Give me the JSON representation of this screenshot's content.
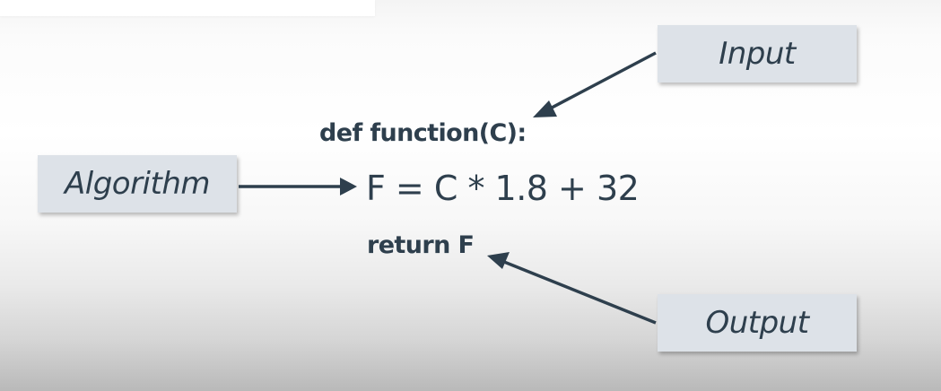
{
  "labels": {
    "input": "Input",
    "algorithm": "Algorithm",
    "output": "Output"
  },
  "code": {
    "def_line": "def function(C):",
    "formula": "F = C * 1.8 + 32",
    "return_line": "return F"
  },
  "colors": {
    "label_fill": "#dde2e8",
    "text": "#2e3f4d",
    "arrow": "#2e3f4d"
  }
}
